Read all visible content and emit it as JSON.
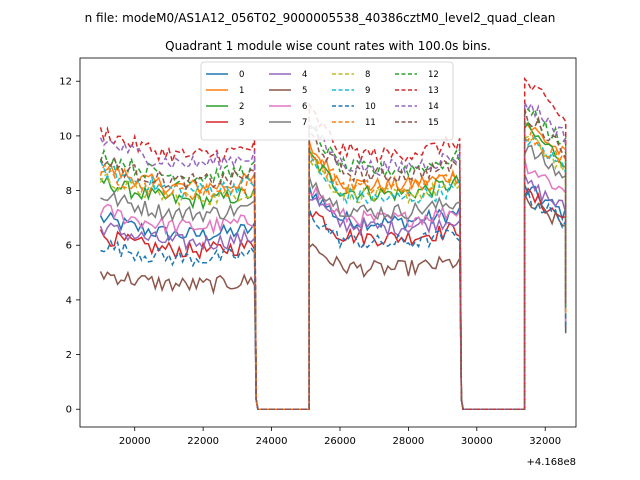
{
  "chart_data": {
    "type": "line",
    "suptitle": "n file: modeM0/AS1A12_056T02_9000005538_40386cztM0_level2_quad_clean",
    "title": "Quadrant 1 module wise count rates with 100.0s bins.",
    "xlabel": "",
    "ylabel": "",
    "x_offset_label": "+4.168e8",
    "xlim": [
      18400,
      32900
    ],
    "ylim": [
      -0.65,
      12.85
    ],
    "xticks": [
      20000,
      22000,
      24000,
      26000,
      28000,
      30000,
      32000
    ],
    "xtick_labels": [
      "20000",
      "22000",
      "24000",
      "26000",
      "28000",
      "30000",
      "32000"
    ],
    "yticks": [
      0,
      2,
      4,
      6,
      8,
      10,
      12
    ],
    "ytick_labels": [
      "0",
      "2",
      "4",
      "6",
      "8",
      "10",
      "12"
    ],
    "grid": false,
    "legend_position": "upper center",
    "legend_columns": 4,
    "segments_x_ranges": [
      [
        19000,
        23500
      ],
      [
        25100,
        29500
      ],
      [
        31400,
        32600
      ]
    ],
    "gap_x_ranges": [
      [
        23600,
        25100
      ],
      [
        29600,
        31400
      ]
    ],
    "series": [
      {
        "name": "0",
        "color": "#1f77b4",
        "dash": "solid",
        "levels": [
          6.6,
          7.2,
          8.1
        ]
      },
      {
        "name": "1",
        "color": "#ff7f0e",
        "dash": "solid",
        "levels": [
          8.4,
          8.6,
          10.5
        ]
      },
      {
        "name": "2",
        "color": "#2ca02c",
        "dash": "solid",
        "levels": [
          7.9,
          8.3,
          10.3
        ]
      },
      {
        "name": "3",
        "color": "#d62728",
        "dash": "solid",
        "levels": [
          6.0,
          6.6,
          7.9
        ]
      },
      {
        "name": "4",
        "color": "#9467bd",
        "dash": "solid",
        "levels": [
          6.3,
          7.0,
          8.3
        ]
      },
      {
        "name": "5",
        "color": "#8c564b",
        "dash": "solid",
        "levels": [
          4.7,
          5.4,
          7.6
        ]
      },
      {
        "name": "6",
        "color": "#e377c2",
        "dash": "solid",
        "levels": [
          6.9,
          7.3,
          9.0
        ]
      },
      {
        "name": "7",
        "color": "#7f7f7f",
        "dash": "solid",
        "levels": [
          7.4,
          7.6,
          9.6
        ]
      },
      {
        "name": "8",
        "color": "#bcbd22",
        "dash": "dashed",
        "levels": [
          8.0,
          8.2,
          10.0
        ]
      },
      {
        "name": "9",
        "color": "#17becf",
        "dash": "dashed",
        "levels": [
          8.3,
          8.1,
          10.0
        ]
      },
      {
        "name": "10",
        "color": "#1f77b4",
        "dash": "dashed",
        "levels": [
          5.7,
          6.4,
          7.8
        ]
      },
      {
        "name": "11",
        "color": "#ff7f0e",
        "dash": "dashed",
        "levels": [
          8.2,
          8.5,
          10.2
        ]
      },
      {
        "name": "12",
        "color": "#2ca02c",
        "dash": "dashed",
        "levels": [
          8.8,
          9.2,
          11.0
        ]
      },
      {
        "name": "13",
        "color": "#d62728",
        "dash": "dashed",
        "levels": [
          9.6,
          9.8,
          12.0
        ]
      },
      {
        "name": "14",
        "color": "#9467bd",
        "dash": "dashed",
        "levels": [
          9.3,
          9.3,
          11.3
        ]
      },
      {
        "name": "15",
        "color": "#8c564b",
        "dash": "dashed",
        "levels": [
          8.6,
          9.0,
          10.8
        ]
      }
    ]
  }
}
